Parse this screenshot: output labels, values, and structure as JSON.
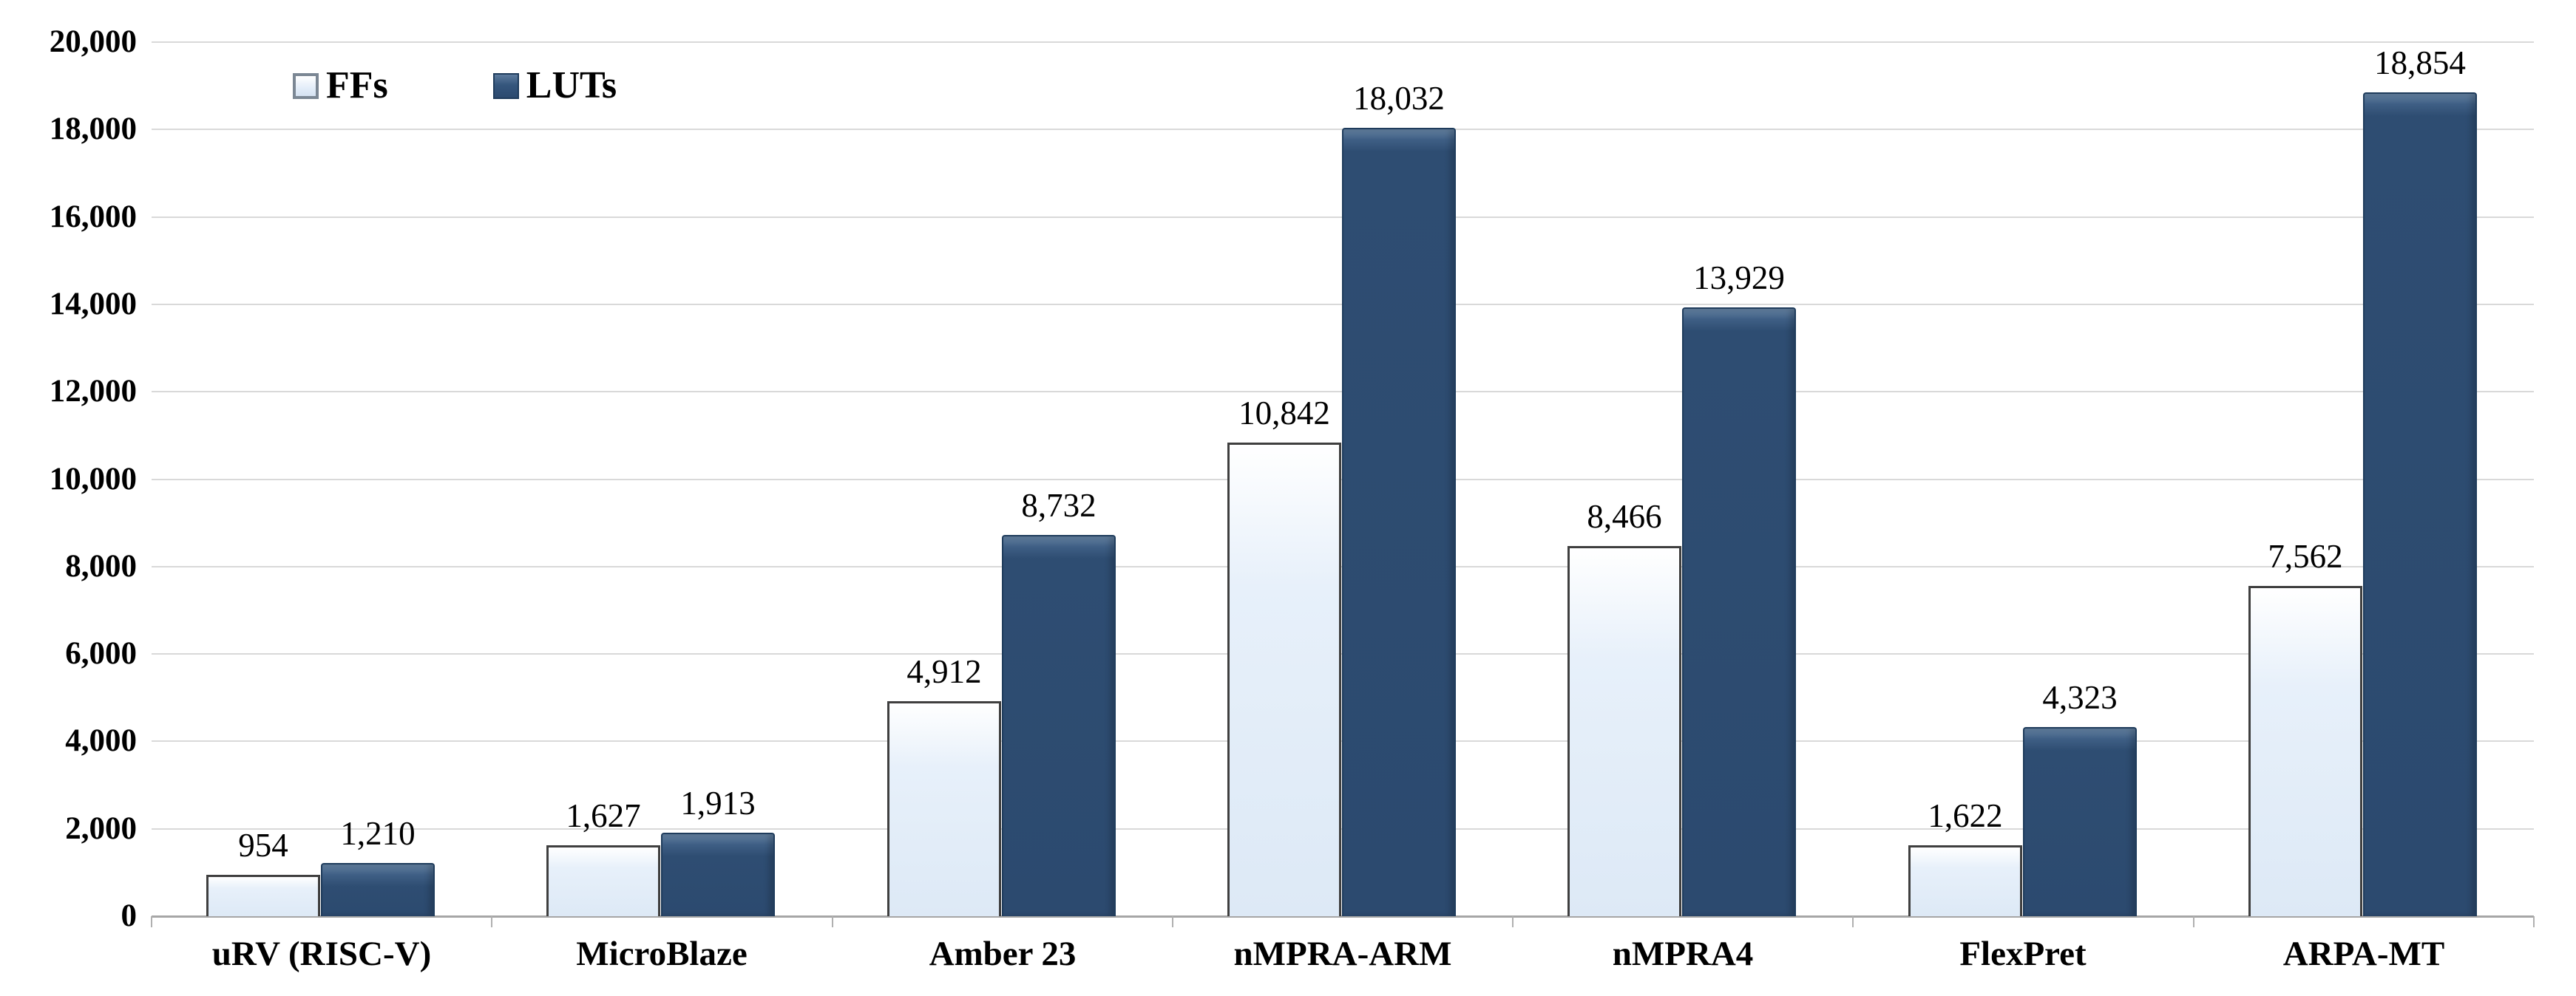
{
  "chart_data": {
    "type": "bar",
    "title": "",
    "xlabel": "",
    "ylabel": "",
    "categories": [
      "uRV (RISC-V)",
      "MicroBlaze",
      "Amber 23",
      "nMPRA-ARM",
      "nMPRA4",
      "FlexPret",
      "ARPA-MT"
    ],
    "series": [
      {
        "name": "FFs",
        "values": [
          954,
          1627,
          4912,
          10842,
          8466,
          1622,
          7562
        ],
        "value_labels": [
          "954",
          "1,627",
          "4,912",
          "10,842",
          "8,466",
          "1,622",
          "7,562"
        ],
        "color": "#dde9f6",
        "border_color": "#3f3f3f"
      },
      {
        "name": "LUTs",
        "values": [
          1210,
          1913,
          8732,
          18032,
          13929,
          4323,
          18854
        ],
        "value_labels": [
          "1,210",
          "1,913",
          "8,732",
          "18,032",
          "13,929",
          "4,323",
          "18,854"
        ],
        "color": "#2c4a6f",
        "border_color": "#1f3c5c"
      }
    ],
    "y_axis": {
      "min": 0,
      "max": 20000,
      "step": 2000,
      "tick_labels": [
        "0",
        "2,000",
        "4,000",
        "6,000",
        "8,000",
        "10,000",
        "12,000",
        "14,000",
        "16,000",
        "18,000",
        "20,000"
      ]
    },
    "grid": true,
    "gridline_color": "#d9d9d9",
    "axis_line_color": "#a6a6a6",
    "text_color": "#000000",
    "legend_position": "top-left",
    "legend": [
      "FFs",
      "LUTs"
    ]
  }
}
